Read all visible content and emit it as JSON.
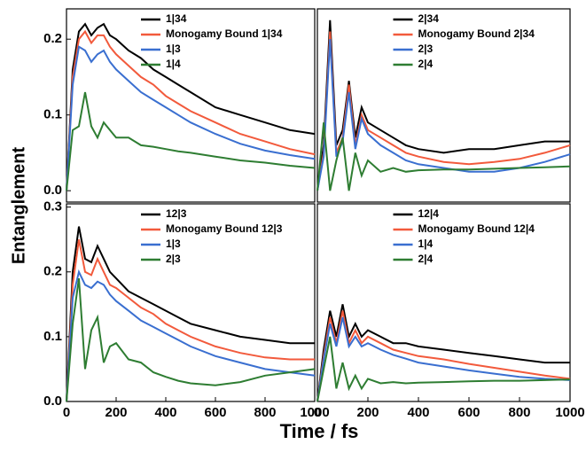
{
  "y_label": "Entanglement",
  "x_label": "Time / fs",
  "chart_data": [
    {
      "type": "line",
      "legend": "upper center",
      "xlim": [
        0,
        1000
      ],
      "ylim": [
        -0.015,
        0.24
      ],
      "yticks": [
        {
          "value": 0,
          "label": "0.0"
        },
        0.1,
        0.2
      ],
      "x": [
        0,
        25,
        50,
        75,
        100,
        125,
        150,
        175,
        200,
        250,
        300,
        350,
        400,
        450,
        500,
        600,
        700,
        800,
        900,
        1000
      ],
      "series": [
        {
          "name": "1|34",
          "color": "#000000",
          "values": [
            0,
            0.16,
            0.21,
            0.22,
            0.205,
            0.215,
            0.22,
            0.205,
            0.2,
            0.185,
            0.175,
            0.16,
            0.15,
            0.14,
            0.13,
            0.11,
            0.1,
            0.09,
            0.08,
            0.075
          ]
        },
        {
          "name": "Monogamy Bound 1|34",
          "color": "#f25a3c",
          "values": [
            0,
            0.15,
            0.2,
            0.21,
            0.195,
            0.205,
            0.205,
            0.19,
            0.18,
            0.165,
            0.15,
            0.14,
            0.125,
            0.115,
            0.105,
            0.09,
            0.075,
            0.065,
            0.055,
            0.048
          ]
        },
        {
          "name": "1|3",
          "color": "#3a6fd0",
          "values": [
            0,
            0.14,
            0.19,
            0.185,
            0.17,
            0.18,
            0.185,
            0.17,
            0.16,
            0.145,
            0.13,
            0.12,
            0.11,
            0.1,
            0.09,
            0.075,
            0.062,
            0.053,
            0.047,
            0.042
          ]
        },
        {
          "name": "1|4",
          "color": "#2e7d32",
          "values": [
            0,
            0.08,
            0.085,
            0.13,
            0.085,
            0.07,
            0.09,
            0.08,
            0.07,
            0.07,
            0.06,
            0.058,
            0.055,
            0.052,
            0.05,
            0.045,
            0.04,
            0.037,
            0.033,
            0.03
          ]
        }
      ]
    },
    {
      "type": "line",
      "legend": "upper center",
      "xlim": [
        0,
        1000
      ],
      "ylim": [
        -0.015,
        0.24
      ],
      "x": [
        0,
        25,
        50,
        75,
        100,
        125,
        150,
        175,
        200,
        250,
        300,
        350,
        400,
        500,
        600,
        700,
        800,
        900,
        1000
      ],
      "series": [
        {
          "name": "2|34",
          "color": "#000000",
          "values": [
            0,
            0.06,
            0.225,
            0.06,
            0.08,
            0.145,
            0.07,
            0.11,
            0.09,
            0.08,
            0.07,
            0.06,
            0.055,
            0.05,
            0.055,
            0.055,
            0.06,
            0.065,
            0.065
          ]
        },
        {
          "name": "Monogamy Bound 2|34",
          "color": "#f25a3c",
          "values": [
            0,
            0.05,
            0.21,
            0.05,
            0.07,
            0.14,
            0.06,
            0.1,
            0.08,
            0.07,
            0.06,
            0.05,
            0.045,
            0.038,
            0.035,
            0.038,
            0.042,
            0.05,
            0.06
          ]
        },
        {
          "name": "2|3",
          "color": "#3a6fd0",
          "values": [
            0,
            0.045,
            0.2,
            0.045,
            0.065,
            0.13,
            0.055,
            0.095,
            0.075,
            0.06,
            0.05,
            0.04,
            0.035,
            0.03,
            0.025,
            0.025,
            0.03,
            0.038,
            0.048
          ]
        },
        {
          "name": "2|4",
          "color": "#2e7d32",
          "values": [
            0,
            0.09,
            0.0,
            0.04,
            0.07,
            0.0,
            0.05,
            0.02,
            0.04,
            0.025,
            0.03,
            0.025,
            0.027,
            0.028,
            0.028,
            0.029,
            0.03,
            0.031,
            0.032
          ]
        }
      ]
    },
    {
      "type": "line",
      "legend": "upper center",
      "xlim": [
        0,
        1000
      ],
      "ylim": [
        0,
        0.305
      ],
      "xticks": [
        0,
        200,
        400,
        600,
        800,
        1000
      ],
      "yticks": [
        {
          "value": 0,
          "label": "0.0"
        },
        0.1,
        0.2,
        0.3
      ],
      "x": [
        0,
        25,
        50,
        75,
        100,
        125,
        150,
        175,
        200,
        250,
        300,
        350,
        400,
        450,
        500,
        600,
        700,
        800,
        900,
        1000
      ],
      "series": [
        {
          "name": "12|3",
          "color": "#000000",
          "values": [
            0,
            0.2,
            0.27,
            0.22,
            0.215,
            0.24,
            0.22,
            0.2,
            0.19,
            0.17,
            0.16,
            0.15,
            0.14,
            0.13,
            0.12,
            0.11,
            0.1,
            0.095,
            0.09,
            0.09
          ]
        },
        {
          "name": "Monogamy Bound 12|3",
          "color": "#f25a3c",
          "values": [
            0,
            0.18,
            0.25,
            0.2,
            0.195,
            0.22,
            0.2,
            0.18,
            0.175,
            0.16,
            0.145,
            0.135,
            0.12,
            0.11,
            0.1,
            0.085,
            0.075,
            0.068,
            0.065,
            0.065
          ]
        },
        {
          "name": "1|3",
          "color": "#3a6fd0",
          "values": [
            0,
            0.16,
            0.2,
            0.18,
            0.175,
            0.185,
            0.18,
            0.165,
            0.155,
            0.14,
            0.125,
            0.115,
            0.105,
            0.095,
            0.085,
            0.07,
            0.06,
            0.05,
            0.045,
            0.04
          ]
        },
        {
          "name": "2|3",
          "color": "#2e7d32",
          "values": [
            0,
            0.12,
            0.19,
            0.05,
            0.11,
            0.13,
            0.06,
            0.085,
            0.09,
            0.065,
            0.06,
            0.045,
            0.038,
            0.032,
            0.028,
            0.025,
            0.03,
            0.04,
            0.045,
            0.05
          ]
        }
      ]
    },
    {
      "type": "line",
      "legend": "upper center",
      "xlim": [
        0,
        1000
      ],
      "ylim": [
        0,
        0.305
      ],
      "xticks": [
        0,
        200,
        400,
        600,
        800,
        1000
      ],
      "x": [
        0,
        25,
        50,
        75,
        100,
        125,
        150,
        175,
        200,
        250,
        300,
        350,
        400,
        500,
        600,
        700,
        800,
        900,
        1000
      ],
      "series": [
        {
          "name": "12|4",
          "color": "#000000",
          "values": [
            0,
            0.08,
            0.14,
            0.1,
            0.15,
            0.1,
            0.12,
            0.1,
            0.11,
            0.1,
            0.09,
            0.09,
            0.085,
            0.08,
            0.075,
            0.07,
            0.065,
            0.06,
            0.06
          ]
        },
        {
          "name": "Monogamy Bound 12|4",
          "color": "#f25a3c",
          "values": [
            0,
            0.07,
            0.13,
            0.09,
            0.14,
            0.09,
            0.11,
            0.09,
            0.1,
            0.09,
            0.08,
            0.075,
            0.07,
            0.065,
            0.058,
            0.052,
            0.046,
            0.04,
            0.035
          ]
        },
        {
          "name": "1|4",
          "color": "#3a6fd0",
          "values": [
            0,
            0.065,
            0.12,
            0.085,
            0.13,
            0.085,
            0.1,
            0.085,
            0.09,
            0.08,
            0.072,
            0.066,
            0.06,
            0.054,
            0.048,
            0.043,
            0.038,
            0.035,
            0.033
          ]
        },
        {
          "name": "2|4",
          "color": "#2e7d32",
          "values": [
            0,
            0.05,
            0.1,
            0.02,
            0.06,
            0.02,
            0.04,
            0.02,
            0.035,
            0.028,
            0.03,
            0.028,
            0.029,
            0.03,
            0.031,
            0.032,
            0.032,
            0.033,
            0.034
          ]
        }
      ]
    }
  ]
}
